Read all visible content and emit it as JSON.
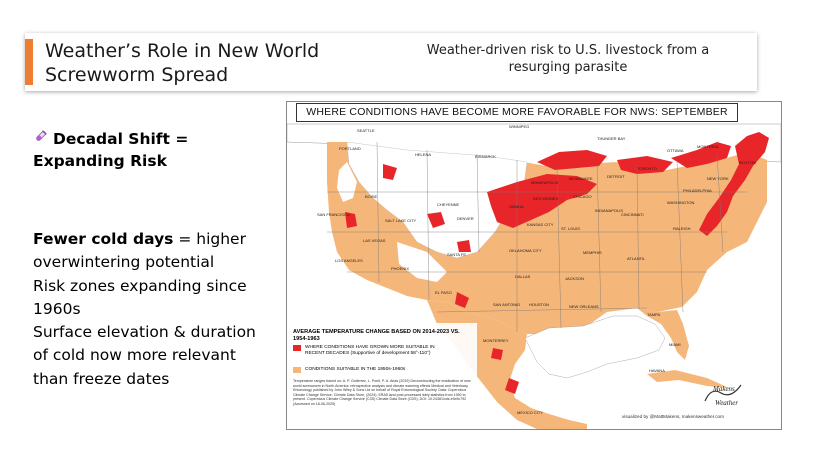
{
  "slide": {
    "title": "Weather’s Role in New World Screwworm Spread",
    "subtitle": "Weather-driven risk to U.S. livestock from a resurging parasite",
    "section_icon": "test-tube-icon",
    "section_heading": "Decadal Shift = Expanding Risk",
    "bullets": [
      {
        "bold": "Fewer cold days",
        "text": " = higher overwintering potential"
      },
      {
        "bold": "",
        "text": "Risk zones expanding since 1960s"
      },
      {
        "bold": "",
        "text": "Surface elevation & duration of cold now more relevant than freeze dates"
      }
    ]
  },
  "map": {
    "title": "WHERE CONDITIONS HAVE BECOME MORE FAVORABLE FOR NWS: SEPTEMBER",
    "legend_title": "AVERAGE TEMPERATURE CHANGE BASED ON 2014-2023 VS. 1954-1963",
    "legend_items": [
      {
        "label": "WHERE CONDITIONS HAVE GROWN MORE SUITABLE IN RECENT DECADES (Supportive of development 58°-110°)",
        "color": "#e8262a"
      },
      {
        "label": "CONDITIONS SUITABLE IN THE 1950s-1960s",
        "color": "#f5b67a"
      }
    ],
    "legend_note": "Temperature ranges based on: A. P. Gutierrez, L. Ponti, P. A. Arias (2019) Deconstructing the eradication of new world screwworm in North America: retrospective analysis and climate warming effects Medical and Veterinary Entomology published by John Wiley & Sons Ltd on behalf of Royal Entomological Society. Data: Copernicus Climate Change Service, Climate Data Store, (2024): ERA5 land post-processed daily statistics from 1950 to present. Copernicus Climate Change Service (C3S) Climate Data Store (CDS), DOI: 10.24381/cds.e9c9c792 (Accessed on 18-06-2025)",
    "credit": "visualized by @MattMakens, makensweather.com",
    "logo_text": "Makens Weather",
    "cities": [
      "SEATTLE",
      "PORTLAND",
      "HELENA",
      "BISMARCK",
      "WINNIPEG",
      "THUNDER BAY",
      "MINNEAPOLIS",
      "BOISE",
      "SALT LAKE CITY",
      "CHEYENNE",
      "DENVER",
      "OMAHA",
      "DES MOINES",
      "CHICAGO",
      "MILWAUKEE",
      "DETROIT",
      "TORONTO",
      "OTTAWA",
      "MONTREAL",
      "BOSTON",
      "NEW YORK",
      "PHILADELPHIA",
      "WASHINGTON",
      "SAN FRANCISCO",
      "LAS VEGAS",
      "LOS ANGELES",
      "PHOENIX",
      "SANTA FE",
      "KANSAS CITY",
      "ST. LOUIS",
      "INDIANAPOLIS",
      "CINCINNATI",
      "RALEIGH",
      "ATLANTA",
      "MEMPHIS",
      "OKLAHOMA CITY",
      "DALLAS",
      "JACKSON",
      "SAN ANTONIO",
      "HOUSTON",
      "NEW ORLEANS",
      "TAMPA",
      "MIAMI",
      "EL PASO",
      "MONTERREY",
      "HAVANA",
      "MEXICO CITY"
    ]
  },
  "colors": {
    "accent": "#ed7d31",
    "risk_new": "#e8262a",
    "risk_old": "#f5b67a",
    "land": "#ffffff",
    "border": "#777777"
  }
}
